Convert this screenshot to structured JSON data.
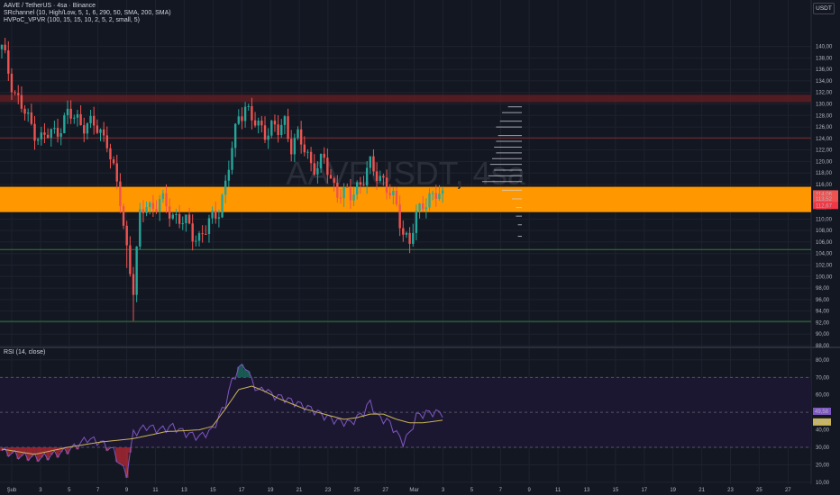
{
  "header": {
    "symbol_line": "AAVE / TetherUS · 4sa · Binance",
    "indicator_1": "SRchannel (10, High/Low, 5, 1, 6, 290, 50, SMA, 200, SMA)",
    "indicator_2": "HVPoC_VPVR (100, 15, 15, 10, 2, 5, 2, small, 5)",
    "rsi_label": "RSI (14, close)",
    "currency": "USDT",
    "watermark": "AAVEUSDT, 4sa"
  },
  "colors": {
    "background": "#131722",
    "up_candle": "#26a69a",
    "down_candle": "#ef5350",
    "sr_band": "#ff9800",
    "resistance_band": "#5d1f22",
    "support_line": "#2e7d32",
    "rsi_line": "#7e57c2",
    "rsi_ma": "#c9b458",
    "rsi_band_fill": "#1c1731",
    "vpvr_line": "#d1d4dc"
  },
  "chart_data": [
    {
      "type": "candlestick",
      "ylim": [
        88,
        144
      ],
      "y_ticks": [
        "140,00",
        "138,00",
        "136,00",
        "134,00",
        "132,00",
        "130,00",
        "128,00",
        "126,00",
        "124,00",
        "122,00",
        "120,00",
        "118,00",
        "116,00",
        "114,00",
        "112,00",
        "110,00",
        "108,00",
        "106,00",
        "104,00",
        "102,00",
        "100,00",
        "98,00",
        "96,00",
        "94,00",
        "92,00",
        "90,00",
        "88,00"
      ],
      "x_ticks": [
        "Şub",
        "3",
        "5",
        "7",
        "9",
        "11",
        "13",
        "15",
        "17",
        "19",
        "21",
        "23",
        "25",
        "27",
        "Mar",
        "3",
        "5",
        "7",
        "9",
        "11",
        "13",
        "15",
        "17",
        "19",
        "21",
        "23",
        "25",
        "27"
      ],
      "price_labels": [
        "114,06",
        "113,52",
        "112,67"
      ],
      "bands": [
        {
          "name": "resistance-zone",
          "low": 130.3,
          "high": 131.6
        },
        {
          "name": "sr-zone",
          "low": 111.2,
          "high": 115.6
        }
      ],
      "lines": [
        {
          "name": "resistance-line",
          "value": 124.1
        },
        {
          "name": "support-line-1",
          "value": 104.7
        },
        {
          "name": "support-line-2",
          "value": 92.2
        }
      ],
      "price_path": [
        [
          0,
          139.5
        ],
        [
          4,
          132
        ],
        [
          8,
          127
        ],
        [
          12,
          124
        ],
        [
          16,
          125
        ],
        [
          20,
          128
        ],
        [
          24,
          127
        ],
        [
          28,
          126
        ],
        [
          32,
          124
        ],
        [
          34,
          118
        ],
        [
          36,
          113
        ],
        [
          38,
          105
        ],
        [
          40,
          98
        ],
        [
          42,
          110
        ],
        [
          44,
          113
        ],
        [
          46,
          112
        ],
        [
          48,
          113
        ],
        [
          50,
          112
        ],
        [
          52,
          111
        ],
        [
          54,
          110
        ],
        [
          56,
          109
        ],
        [
          58,
          107.5
        ],
        [
          60,
          107
        ],
        [
          62,
          108
        ],
        [
          64,
          110
        ],
        [
          66,
          112
        ],
        [
          68,
          116
        ],
        [
          70,
          122
        ],
        [
          72,
          128
        ],
        [
          74,
          130
        ],
        [
          76,
          127
        ],
        [
          78,
          126
        ],
        [
          80,
          125.5
        ],
        [
          82,
          126
        ],
        [
          84,
          125
        ],
        [
          86,
          127
        ],
        [
          88,
          123
        ],
        [
          90,
          124
        ],
        [
          92,
          122
        ],
        [
          94,
          120
        ],
        [
          96,
          119
        ],
        [
          98,
          120
        ],
        [
          100,
          117
        ],
        [
          102,
          115
        ],
        [
          104,
          114
        ],
        [
          106,
          114
        ],
        [
          108,
          116
        ],
        [
          110,
          117
        ],
        [
          112,
          119
        ],
        [
          114,
          118
        ],
        [
          116,
          117
        ],
        [
          118,
          114
        ],
        [
          120,
          112
        ],
        [
          122,
          108
        ],
        [
          124,
          106
        ],
        [
          126,
          110
        ],
        [
          128,
          113
        ],
        [
          130,
          114
        ],
        [
          132,
          114
        ],
        [
          134,
          113.5
        ]
      ],
      "vpvr_levels": [
        {
          "price": 129.5,
          "length": 0.35
        },
        {
          "price": 128.5,
          "length": 0.5
        },
        {
          "price": 127.0,
          "length": 0.55
        },
        {
          "price": 126.0,
          "length": 0.65
        },
        {
          "price": 124.5,
          "length": 0.6
        },
        {
          "price": 123.5,
          "length": 0.65
        },
        {
          "price": 122.5,
          "length": 0.7
        },
        {
          "price": 121.5,
          "length": 0.65
        },
        {
          "price": 120.5,
          "length": 0.75
        },
        {
          "price": 119.5,
          "length": 0.8
        },
        {
          "price": 118.5,
          "length": 0.7
        },
        {
          "price": 117.5,
          "length": 0.85
        },
        {
          "price": 116.5,
          "length": 1.0
        },
        {
          "price": 115.0,
          "length": 0.5
        },
        {
          "price": 113.5,
          "length": 0.25
        },
        {
          "price": 112.0,
          "length": 0.15
        },
        {
          "price": 110.5,
          "length": 0.15
        },
        {
          "price": 109.0,
          "length": 0.1
        },
        {
          "price": 107.0,
          "length": 0.1
        }
      ]
    },
    {
      "type": "line",
      "name": "RSI (14, close)",
      "ylim": [
        12,
        82
      ],
      "y_ticks": [
        "80,00",
        "70,00",
        "60,00",
        "50,00",
        "40,00",
        "30,00",
        "20,00",
        "10,00"
      ],
      "levels": [
        70,
        50,
        30
      ],
      "current_labels": [
        "49,58",
        "45,52"
      ],
      "rsi_path": [
        [
          0,
          28
        ],
        [
          6,
          25
        ],
        [
          12,
          24
        ],
        [
          18,
          27
        ],
        [
          22,
          30
        ],
        [
          26,
          35
        ],
        [
          30,
          33
        ],
        [
          34,
          28
        ],
        [
          36,
          20
        ],
        [
          38,
          15
        ],
        [
          40,
          38
        ],
        [
          44,
          42
        ],
        [
          48,
          40
        ],
        [
          52,
          42
        ],
        [
          56,
          38
        ],
        [
          60,
          36
        ],
        [
          64,
          40
        ],
        [
          68,
          55
        ],
        [
          70,
          68
        ],
        [
          72,
          75
        ],
        [
          74,
          77
        ],
        [
          76,
          68
        ],
        [
          78,
          62
        ],
        [
          80,
          64
        ],
        [
          82,
          60
        ],
        [
          86,
          58
        ],
        [
          90,
          55
        ],
        [
          94,
          52
        ],
        [
          98,
          48
        ],
        [
          102,
          45
        ],
        [
          106,
          44
        ],
        [
          110,
          50
        ],
        [
          112,
          56
        ],
        [
          114,
          48
        ],
        [
          118,
          44
        ],
        [
          120,
          38
        ],
        [
          122,
          33
        ],
        [
          124,
          38
        ],
        [
          126,
          48
        ],
        [
          130,
          50
        ],
        [
          134,
          49.6
        ]
      ],
      "ma_path": [
        [
          0,
          29
        ],
        [
          10,
          26
        ],
        [
          20,
          30
        ],
        [
          30,
          33
        ],
        [
          40,
          35
        ],
        [
          50,
          39
        ],
        [
          60,
          40
        ],
        [
          64,
          42
        ],
        [
          68,
          52
        ],
        [
          72,
          63
        ],
        [
          76,
          65
        ],
        [
          80,
          62
        ],
        [
          84,
          58
        ],
        [
          88,
          55
        ],
        [
          92,
          52
        ],
        [
          96,
          50
        ],
        [
          100,
          48
        ],
        [
          104,
          46
        ],
        [
          108,
          47
        ],
        [
          112,
          49
        ],
        [
          116,
          49
        ],
        [
          120,
          46
        ],
        [
          124,
          44
        ],
        [
          128,
          44
        ],
        [
          132,
          45
        ],
        [
          134,
          45.5
        ]
      ]
    }
  ]
}
